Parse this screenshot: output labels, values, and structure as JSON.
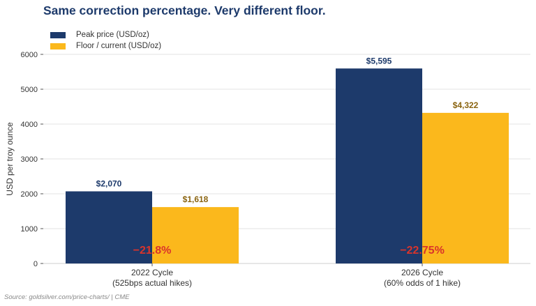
{
  "chart_data": {
    "type": "bar",
    "title": "Same correction percentage. Very different floor.",
    "ylabel": "USD per troy ounce",
    "xlabel": "",
    "ylim": [
      0,
      6000
    ],
    "yticks": [
      0,
      1000,
      2000,
      3000,
      4000,
      5000,
      6000
    ],
    "grid": true,
    "legend_position": "top-left",
    "categories": [
      [
        "2022 Cycle",
        "(525bps actual hikes)"
      ],
      [
        "2026 Cycle",
        "(60% odds of 1 hike)"
      ]
    ],
    "series": [
      {
        "name": "Peak price (USD/oz)",
        "color": "#1d3a6b",
        "label_color": "#1d3a6b",
        "values": [
          2070,
          5595
        ],
        "labels": [
          "$2,070",
          "$5,595"
        ]
      },
      {
        "name": "Floor / current (USD/oz)",
        "color": "#fbb81c",
        "label_color": "#8a6410",
        "values": [
          1618,
          4322
        ],
        "labels": [
          "$1,618",
          "$4,322"
        ]
      }
    ],
    "annotations": [
      {
        "text": "−21.8%",
        "category_index": 0,
        "color": "#d9342b"
      },
      {
        "text": "−22.75%",
        "category_index": 1,
        "color": "#d9342b"
      }
    ]
  },
  "source": "Source: goldsilver.com/price-charts/ | CME"
}
